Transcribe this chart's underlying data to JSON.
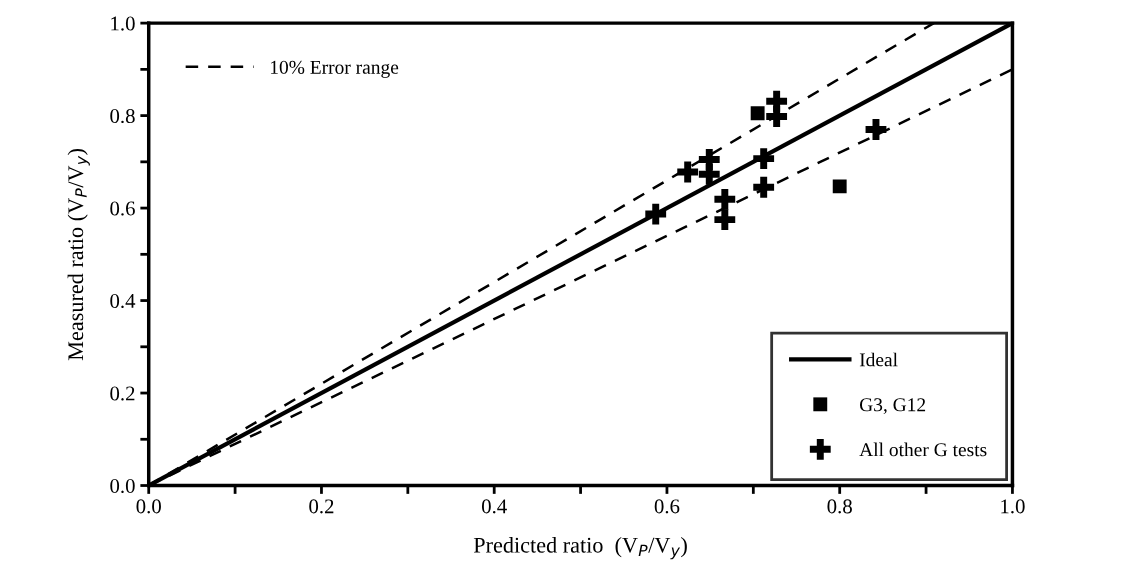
{
  "chart_data": {
    "type": "scatter",
    "xlabel": "Predicted ratio  (V$_{P}$/V$_{y}$)",
    "ylabel": "Measured ratio (V$_{P}$/V$_{y}$)",
    "xlim": [
      0,
      1.0
    ],
    "ylim": [
      0,
      1.0
    ],
    "xticks": [
      {
        "value": 0,
        "label": "0.0"
      },
      {
        "value": 0.1,
        "label": null
      },
      {
        "value": 0.2,
        "label": "0.2"
      },
      {
        "value": 0.3,
        "label": null
      },
      {
        "value": 0.4,
        "label": "0.4"
      },
      {
        "value": 0.5,
        "label": null
      },
      {
        "value": 0.6,
        "label": "0.6"
      },
      {
        "value": 0.7,
        "label": null
      },
      {
        "value": 0.8,
        "label": "0.8"
      },
      {
        "value": 0.9,
        "label": null
      },
      {
        "value": 1.0,
        "label": "1.0"
      }
    ],
    "yticks": [
      {
        "value": 0,
        "label": "0.0"
      },
      {
        "value": 0.1,
        "label": null
      },
      {
        "value": 0.2,
        "label": "0.2"
      },
      {
        "value": 0.3,
        "label": null
      },
      {
        "value": 0.4,
        "label": "0.4"
      },
      {
        "value": 0.5,
        "label": null
      },
      {
        "value": 0.6,
        "label": "0.6"
      },
      {
        "value": 0.7,
        "label": null
      },
      {
        "value": 0.8,
        "label": "0.8"
      },
      {
        "value": 0.9,
        "label": null
      },
      {
        "value": 1.0,
        "label": "1.0"
      }
    ],
    "grid": false,
    "legend": "bottom right",
    "series": [
      {
        "name": "10% Error range",
        "type": "line",
        "line_style": "dashed",
        "color": "#000000",
        "x": [
          0,
          0.909
        ],
        "values": [
          0,
          1.0
        ]
      },
      {
        "type": "line",
        "line_style": "dashed",
        "color": "#000000",
        "x": [
          0,
          1.0
        ],
        "values": [
          0,
          0.9
        ]
      },
      {
        "name": "Ideal",
        "type": "line",
        "line_style": "solid",
        "color": "#000000",
        "x": [
          0,
          1.0
        ],
        "values": [
          0,
          1.0
        ]
      },
      {
        "name": "G3, G12",
        "marker": "square",
        "color": "#000000",
        "x": [
          0.705,
          0.8
        ],
        "values": [
          0.805,
          0.647
        ]
      },
      {
        "name": "All other G tests",
        "marker": "cross",
        "color": "#000000",
        "x": [
          0.727,
          0.727,
          0.842,
          0.712,
          0.649,
          0.649,
          0.624,
          0.712,
          0.667,
          0.667,
          0.587
        ],
        "values": [
          0.831,
          0.798,
          0.77,
          0.707,
          0.705,
          0.673,
          0.678,
          0.645,
          0.619,
          0.575,
          0.587
        ]
      }
    ]
  }
}
